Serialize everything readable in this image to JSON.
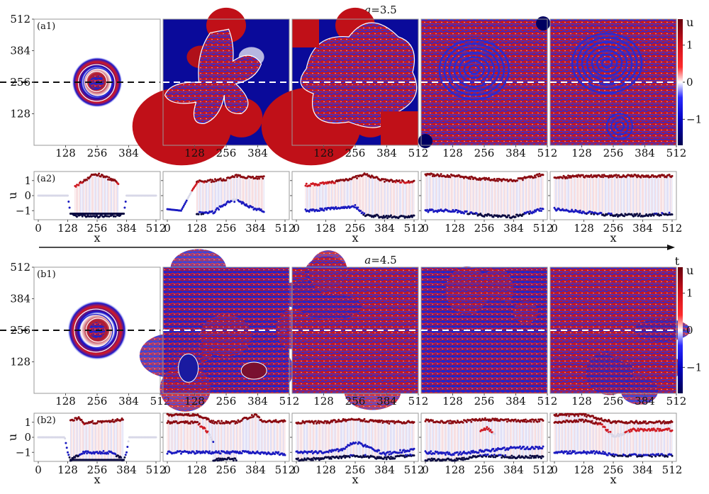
{
  "figure": {
    "arrow_label": "t",
    "colorbar_label": "u",
    "colorbar_ticks": [
      1,
      0,
      -1
    ],
    "colorbar_tick_labels": [
      "1",
      "0",
      "−1"
    ],
    "colormap": [
      "#67000d",
      "#d7191c",
      "#ff2020",
      "#ffffff",
      "#2020ff",
      "#0000c0",
      "#00004d"
    ],
    "slice_line_y": 256
  },
  "chart_data": [
    {
      "id": "a1",
      "type": "heatmap",
      "title": "a=3.5",
      "title_var": "a",
      "title_value": "=3.5",
      "panel_label": "(a1)",
      "panels": 5,
      "x_ticks": [
        128,
        256,
        384,
        512
      ],
      "y_ticks": [
        512,
        384,
        256,
        128
      ],
      "xlim": [
        0,
        512
      ],
      "ylim": [
        0,
        512
      ],
      "colorbar": {
        "label": "u",
        "ticks": [
          1,
          0,
          -1
        ],
        "range": [
          -1.7,
          1.7
        ]
      },
      "dashed_line_y": 256,
      "panel_descriptions": [
        "compact circular spiral pattern centered at (256,256), radius ~100, white background",
        "star/cross-shaped turbulent region with smooth red/blue background",
        "larger irregular turbulent blob with smooth red/blue background",
        "turbulent field filling domain with large spiral centered near (250,300)",
        "turbulent field with two spiral domains"
      ]
    },
    {
      "id": "a2",
      "type": "scatter",
      "panel_label": "(a2)",
      "xlabel": "x",
      "ylabel": "u",
      "x_ticks": [
        0,
        128,
        256,
        384,
        512
      ],
      "y_ticks": [
        1,
        0,
        -1
      ],
      "y_tick_labels": [
        "1",
        "0",
        "−1"
      ],
      "xlim": [
        0,
        512
      ],
      "ylim": [
        -1.6,
        1.6
      ],
      "panels": [
        {
          "description": "flat u=0 outside [128,384], scattered points inside between -1.4 and 1.4",
          "baseline": [
            [
              0,
              0
            ],
            [
              128,
              0
            ],
            [
              140,
              -1.2
            ],
            [
              372,
              -1.2
            ],
            [
              384,
              0
            ],
            [
              512,
              0
            ]
          ],
          "upper": [
            [
              160,
              0.6
            ],
            [
              200,
              1.0
            ],
            [
              240,
              1.4
            ],
            [
              256,
              1.4
            ],
            [
              280,
              1.3
            ],
            [
              330,
              1.0
            ],
            [
              350,
              0.7
            ]
          ],
          "lower": [
            [
              150,
              -1.3
            ],
            [
              200,
              -1.35
            ],
            [
              256,
              -1.4
            ],
            [
              300,
              -1.3
            ],
            [
              360,
              -1.3
            ]
          ]
        },
        {
          "description": "smooth edges near x=0-100 and 420-512, scattered interior",
          "baseline": [
            [
              0,
              -0.9
            ],
            [
              60,
              -1.0
            ],
            [
              110,
              0.4
            ],
            [
              128,
              0.8
            ]
          ],
          "upper": [
            [
              128,
              0.9
            ],
            [
              200,
              1.0
            ],
            [
              256,
              1.1
            ],
            [
              300,
              1.3
            ],
            [
              384,
              1.2
            ],
            [
              420,
              1.2
            ]
          ],
          "lower": [
            [
              128,
              -1.2
            ],
            [
              200,
              -1.1
            ],
            [
              256,
              -0.5
            ],
            [
              300,
              -0.3
            ],
            [
              384,
              -0.9
            ],
            [
              420,
              -1.0
            ]
          ]
        },
        {
          "description": "full-domain turbulent, two branches",
          "upper": [
            [
              40,
              0.7
            ],
            [
              128,
              0.8
            ],
            [
              256,
              1.2
            ],
            [
              300,
              1.4
            ],
            [
              384,
              1.0
            ],
            [
              512,
              0.9
            ]
          ],
          "lower": [
            [
              40,
              -1.0
            ],
            [
              128,
              -0.9
            ],
            [
              256,
              -0.7
            ],
            [
              300,
              -1.3
            ],
            [
              384,
              -1.4
            ],
            [
              512,
              -1.4
            ]
          ]
        },
        {
          "description": "full-domain turbulent, dense oscillations",
          "upper": [
            [
              0,
              1.4
            ],
            [
              128,
              1.3
            ],
            [
              256,
              1.1
            ],
            [
              384,
              1.0
            ],
            [
              512,
              1.4
            ]
          ],
          "lower": [
            [
              0,
              -1.0
            ],
            [
              128,
              -1.0
            ],
            [
              256,
              -1.3
            ],
            [
              384,
              -1.4
            ],
            [
              512,
              -0.9
            ]
          ]
        },
        {
          "description": "full-domain turbulent, dense oscillations",
          "upper": [
            [
              0,
              1.2
            ],
            [
              128,
              1.3
            ],
            [
              256,
              1.3
            ],
            [
              384,
              1.3
            ],
            [
              512,
              1.3
            ]
          ],
          "lower": [
            [
              0,
              -0.9
            ],
            [
              128,
              -1.1
            ],
            [
              256,
              -1.3
            ],
            [
              384,
              -1.3
            ],
            [
              512,
              -1.2
            ]
          ]
        }
      ]
    },
    {
      "id": "b1",
      "type": "heatmap",
      "title": "a=4.5",
      "title_var": "a",
      "title_value": "=4.5",
      "panel_label": "(b1)",
      "panels": 5,
      "x_ticks": [
        128,
        256,
        384,
        512
      ],
      "y_ticks": [
        512,
        384,
        256,
        128
      ],
      "xlim": [
        0,
        512
      ],
      "ylim": [
        0,
        512
      ],
      "colorbar": {
        "label": "u",
        "ticks": [
          1,
          0,
          -1
        ],
        "range": [
          -1.7,
          1.7
        ]
      },
      "dashed_line_y": 256,
      "panel_descriptions": [
        "compact circular spiral pattern centered at (256,256), radius ~115, white background",
        "labyrinthine turbulent field with blue blobs",
        "labyrinthine field, red/blue domains",
        "labyrinthine field, predominantly blue",
        "labyrinthine field, predominantly red"
      ]
    },
    {
      "id": "b2",
      "type": "scatter",
      "panel_label": "(b2)",
      "xlabel": "x",
      "ylabel": "u",
      "x_ticks": [
        0,
        128,
        256,
        384,
        512
      ],
      "y_ticks": [
        1,
        0,
        -1
      ],
      "y_tick_labels": [
        "1",
        "0",
        "−1"
      ],
      "xlim": [
        0,
        512
      ],
      "ylim": [
        -1.6,
        1.6
      ],
      "panels": [
        {
          "description": "u=0 outside [128,384], plateau ~1 and ~-1 inside",
          "baseline": [
            [
              0,
              0
            ],
            [
              115,
              0
            ],
            [
              128,
              -1.0
            ],
            [
              140,
              -1.5
            ],
            [
              372,
              -1.5
            ],
            [
              384,
              -1.0
            ],
            [
              395,
              0
            ],
            [
              512,
              0
            ]
          ],
          "upper": [
            [
              140,
              1.1
            ],
            [
              180,
              1.3
            ],
            [
              200,
              0.8
            ],
            [
              230,
              1.0
            ],
            [
              300,
              1.0
            ],
            [
              330,
              1.1
            ],
            [
              370,
              1.2
            ]
          ],
          "lower": [
            [
              140,
              -1.5
            ],
            [
              200,
              -1.0
            ],
            [
              256,
              -1.0
            ],
            [
              320,
              -1.0
            ],
            [
              370,
              -1.5
            ]
          ]
        },
        {
          "description": "three bands with crossovers",
          "upper": [
            [
              0,
              1.5
            ],
            [
              128,
              1.5
            ],
            [
              200,
              1.0
            ],
            [
              300,
              1.0
            ],
            [
              384,
              1.5
            ],
            [
              420,
              1.0
            ],
            [
              512,
              1.1
            ]
          ],
          "middle": [
            [
              0,
              1.0
            ],
            [
              128,
              1.0
            ],
            [
              180,
              0.3
            ],
            [
              200,
              -0.3
            ]
          ],
          "lower": [
            [
              0,
              -1.0
            ],
            [
              128,
              -1.0
            ],
            [
              256,
              -1.0
            ],
            [
              300,
              -1.0
            ],
            [
              384,
              -1.0
            ],
            [
              512,
              -1.1
            ]
          ],
          "deep": [
            [
              200,
              -1.5
            ],
            [
              256,
              -1.4
            ],
            [
              300,
              -1.5
            ]
          ]
        },
        {
          "description": "two bands, transition around x=256",
          "upper": [
            [
              0,
              1.0
            ],
            [
              128,
              1.0
            ],
            [
              256,
              1.2
            ],
            [
              384,
              1.0
            ],
            [
              512,
              1.0
            ]
          ],
          "lower": [
            [
              0,
              -1.0
            ],
            [
              128,
              -1.0
            ],
            [
              200,
              -0.8
            ],
            [
              256,
              -0.3
            ],
            [
              384,
              -1.1
            ],
            [
              512,
              -0.8
            ]
          ],
          "deep": [
            [
              0,
              -1.5
            ],
            [
              128,
              -1.4
            ],
            [
              256,
              -1.2
            ],
            [
              384,
              -1.4
            ],
            [
              512,
              -1.2
            ]
          ]
        },
        {
          "description": "bands at ~1.1, ~-1.0 and ~-1.5",
          "upper": [
            [
              0,
              1.1
            ],
            [
              128,
              1.0
            ],
            [
              256,
              1.2
            ],
            [
              384,
              1.1
            ],
            [
              512,
              1.1
            ]
          ],
          "middle": [
            [
              240,
              0.4
            ],
            [
              270,
              0.6
            ],
            [
              300,
              0.3
            ]
          ],
          "lower": [
            [
              0,
              -1.0
            ],
            [
              128,
              -1.1
            ],
            [
              256,
              -0.9
            ],
            [
              384,
              -0.7
            ],
            [
              512,
              -0.7
            ]
          ],
          "deep": [
            [
              0,
              -1.5
            ],
            [
              128,
              -1.5
            ],
            [
              256,
              -1.2
            ],
            [
              384,
              -1.3
            ],
            [
              512,
              -1.3
            ]
          ]
        },
        {
          "description": "bands at ~1.5, ~1.0 decaying to 0.5, and ~-1.1",
          "upper": [
            [
              0,
              1.5
            ],
            [
              128,
              1.5
            ],
            [
              200,
              1.2
            ],
            [
              256,
              1.0
            ],
            [
              384,
              1.0
            ],
            [
              512,
              1.0
            ]
          ],
          "middle": [
            [
              0,
              1.0
            ],
            [
              128,
              1.1
            ],
            [
              200,
              0.9
            ],
            [
              256,
              0.1
            ],
            [
              300,
              0.2
            ],
            [
              340,
              0.5
            ],
            [
              512,
              0.5
            ]
          ],
          "lower": [
            [
              0,
              -1.0
            ],
            [
              128,
              -1.0
            ],
            [
              200,
              -1.0
            ],
            [
              256,
              -1.2
            ],
            [
              384,
              -1.2
            ],
            [
              512,
              -1.2
            ]
          ]
        }
      ]
    }
  ]
}
